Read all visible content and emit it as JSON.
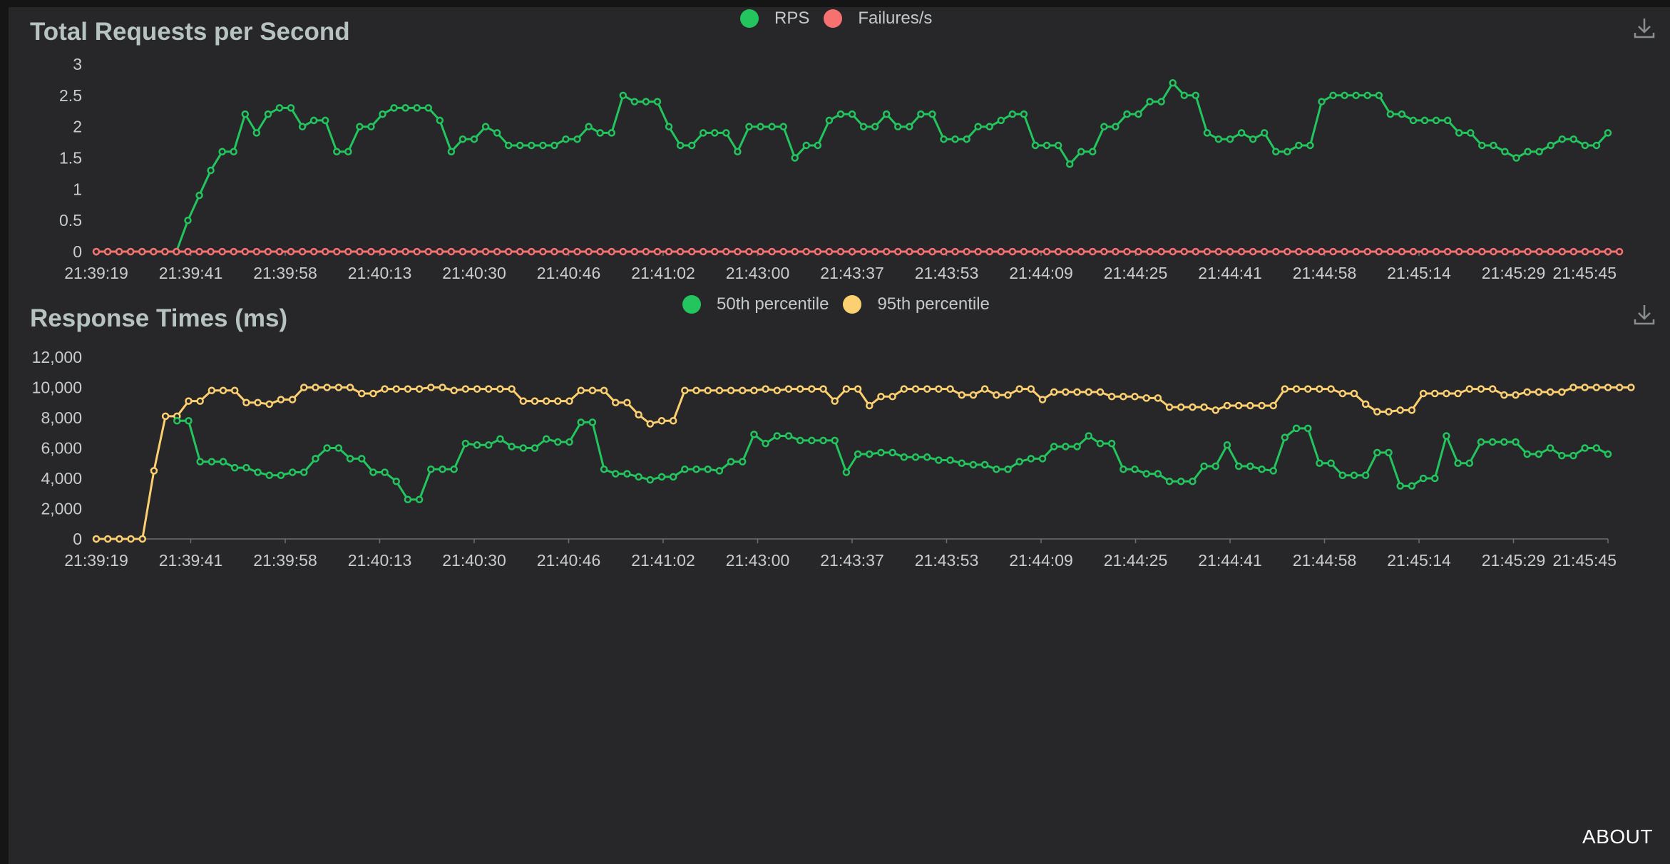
{
  "footer": {
    "about_label": "ABOUT"
  },
  "icons": {
    "download": "download-icon"
  },
  "chart_data": [
    {
      "type": "line",
      "title": "Total Requests per Second",
      "legend_position": "top-center",
      "ylim": [
        0,
        3
      ],
      "yticks": [
        0,
        0.5,
        1,
        1.5,
        2,
        2.5,
        3
      ],
      "ytick_labels": [
        "0",
        "0.5",
        "1",
        "1.5",
        "2",
        "2.5",
        "3"
      ],
      "xtick_labels": [
        "21:39:19",
        "21:39:41",
        "21:39:58",
        "21:40:13",
        "21:40:30",
        "21:40:46",
        "21:41:02",
        "21:43:00",
        "21:43:37",
        "21:43:53",
        "21:44:09",
        "21:44:25",
        "21:44:41",
        "21:44:58",
        "21:45:14",
        "21:45:29",
        "21:45:45"
      ],
      "series": [
        {
          "name": "RPS",
          "color": "#22c55e",
          "values": [
            0,
            0,
            0,
            0,
            0,
            0,
            0,
            0,
            0.5,
            0.9,
            1.3,
            1.6,
            1.6,
            2.2,
            1.9,
            2.2,
            2.3,
            2.3,
            2.0,
            2.1,
            2.1,
            1.6,
            1.6,
            2.0,
            2.0,
            2.2,
            2.3,
            2.3,
            2.3,
            2.3,
            2.1,
            1.6,
            1.8,
            1.8,
            2.0,
            1.9,
            1.7,
            1.7,
            1.7,
            1.7,
            1.7,
            1.8,
            1.8,
            2.0,
            1.9,
            1.9,
            2.5,
            2.4,
            2.4,
            2.4,
            2.0,
            1.7,
            1.7,
            1.9,
            1.9,
            1.9,
            1.6,
            2.0,
            2.0,
            2.0,
            2.0,
            1.5,
            1.7,
            1.7,
            2.1,
            2.2,
            2.2,
            2.0,
            2.0,
            2.2,
            2.0,
            2.0,
            2.2,
            2.2,
            1.8,
            1.8,
            1.8,
            2.0,
            2.0,
            2.1,
            2.2,
            2.2,
            1.7,
            1.7,
            1.7,
            1.4,
            1.6,
            1.6,
            2.0,
            2.0,
            2.2,
            2.2,
            2.4,
            2.4,
            2.7,
            2.5,
            2.5,
            1.9,
            1.8,
            1.8,
            1.9,
            1.8,
            1.9,
            1.6,
            1.6,
            1.7,
            1.7,
            2.4,
            2.5,
            2.5,
            2.5,
            2.5,
            2.5,
            2.2,
            2.2,
            2.1,
            2.1,
            2.1,
            2.1,
            1.9,
            1.9,
            1.7,
            1.7,
            1.6,
            1.5,
            1.6,
            1.6,
            1.7,
            1.8,
            1.8,
            1.7,
            1.7,
            1.9
          ]
        },
        {
          "name": "Failures/s",
          "color": "#f87171",
          "values": [
            0,
            0,
            0,
            0,
            0,
            0,
            0,
            0,
            0,
            0,
            0,
            0,
            0,
            0,
            0,
            0,
            0,
            0,
            0,
            0,
            0,
            0,
            0,
            0,
            0,
            0,
            0,
            0,
            0,
            0,
            0,
            0,
            0,
            0,
            0,
            0,
            0,
            0,
            0,
            0,
            0,
            0,
            0,
            0,
            0,
            0,
            0,
            0,
            0,
            0,
            0,
            0,
            0,
            0,
            0,
            0,
            0,
            0,
            0,
            0,
            0,
            0,
            0,
            0,
            0,
            0,
            0,
            0,
            0,
            0,
            0,
            0,
            0,
            0,
            0,
            0,
            0,
            0,
            0,
            0,
            0,
            0,
            0,
            0,
            0,
            0,
            0,
            0,
            0,
            0,
            0,
            0,
            0,
            0,
            0,
            0,
            0,
            0,
            0,
            0,
            0,
            0,
            0,
            0,
            0,
            0,
            0,
            0,
            0,
            0,
            0,
            0,
            0,
            0,
            0,
            0,
            0,
            0,
            0,
            0,
            0,
            0,
            0,
            0,
            0,
            0,
            0,
            0,
            0,
            0,
            0,
            0,
            0,
            0
          ]
        }
      ]
    },
    {
      "type": "line",
      "title": "Response Times (ms)",
      "legend_position": "top-center",
      "ylim": [
        0,
        12000
      ],
      "yticks": [
        0,
        2000,
        4000,
        6000,
        8000,
        10000,
        12000
      ],
      "ytick_labels": [
        "0",
        "2,000",
        "4,000",
        "6,000",
        "8,000",
        "10,000",
        "12,000"
      ],
      "xtick_labels": [
        "21:39:19",
        "21:39:41",
        "21:39:58",
        "21:40:13",
        "21:40:30",
        "21:40:46",
        "21:41:02",
        "21:43:00",
        "21:43:37",
        "21:43:53",
        "21:44:09",
        "21:44:25",
        "21:44:41",
        "21:44:58",
        "21:45:14",
        "21:45:29",
        "21:45:45"
      ],
      "series": [
        {
          "name": "50th percentile",
          "color": "#22c55e",
          "values": [
            null,
            null,
            null,
            null,
            null,
            null,
            null,
            7800,
            7800,
            5100,
            5100,
            5100,
            4700,
            4700,
            4400,
            4200,
            4200,
            4400,
            4400,
            5300,
            6000,
            6000,
            5300,
            5300,
            4400,
            4400,
            3800,
            2600,
            2600,
            4600,
            4600,
            4600,
            6300,
            6200,
            6200,
            6600,
            6100,
            6000,
            6000,
            6600,
            6400,
            6400,
            7700,
            7700,
            4600,
            4300,
            4300,
            4100,
            3900,
            4100,
            4100,
            4600,
            4600,
            4600,
            4500,
            5100,
            5100,
            6900,
            6300,
            6800,
            6800,
            6500,
            6500,
            6500,
            6500,
            4400,
            5600,
            5600,
            5700,
            5700,
            5400,
            5400,
            5400,
            5200,
            5200,
            5000,
            4900,
            4900,
            4600,
            4600,
            5100,
            5300,
            5300,
            6100,
            6100,
            6100,
            6800,
            6300,
            6300,
            4600,
            4600,
            4300,
            4300,
            3800,
            3800,
            3800,
            4800,
            4800,
            6200,
            4800,
            4800,
            4600,
            4500,
            6700,
            7300,
            7300,
            5000,
            5000,
            4200,
            4200,
            4200,
            5700,
            5700,
            3500,
            3500,
            4000,
            4000,
            6800,
            5000,
            5000,
            6400,
            6400,
            6400,
            6400,
            5600,
            5600,
            6000,
            5500,
            5500,
            6000,
            6000,
            5600
          ]
        },
        {
          "name": "95th percentile",
          "color": "#fcd071",
          "values": [
            0,
            0,
            0,
            0,
            0,
            4500,
            8100,
            8100,
            9100,
            9100,
            9800,
            9800,
            9800,
            9000,
            9000,
            8900,
            9200,
            9200,
            10000,
            10000,
            10000,
            10000,
            10000,
            9600,
            9600,
            9900,
            9900,
            9900,
            9900,
            10000,
            10000,
            9800,
            9900,
            9900,
            9900,
            9900,
            9900,
            9100,
            9100,
            9100,
            9100,
            9100,
            9800,
            9800,
            9800,
            9000,
            9000,
            8200,
            7600,
            7800,
            7800,
            9800,
            9800,
            9800,
            9800,
            9800,
            9800,
            9800,
            9900,
            9800,
            9900,
            9900,
            9900,
            9900,
            9100,
            9900,
            9900,
            8800,
            9400,
            9400,
            9900,
            9900,
            9900,
            9900,
            9900,
            9500,
            9500,
            9900,
            9500,
            9500,
            9900,
            9900,
            9200,
            9700,
            9700,
            9700,
            9700,
            9700,
            9400,
            9400,
            9400,
            9300,
            9300,
            8700,
            8700,
            8700,
            8700,
            8500,
            8800,
            8800,
            8800,
            8800,
            8800,
            9900,
            9900,
            9900,
            9900,
            9900,
            9600,
            9600,
            8900,
            8400,
            8400,
            8500,
            8500,
            9600,
            9600,
            9600,
            9600,
            9900,
            9900,
            9900,
            9500,
            9500,
            9700,
            9700,
            9700,
            9700,
            10000,
            10000,
            10000,
            10000,
            10000,
            10000
          ]
        }
      ]
    }
  ]
}
